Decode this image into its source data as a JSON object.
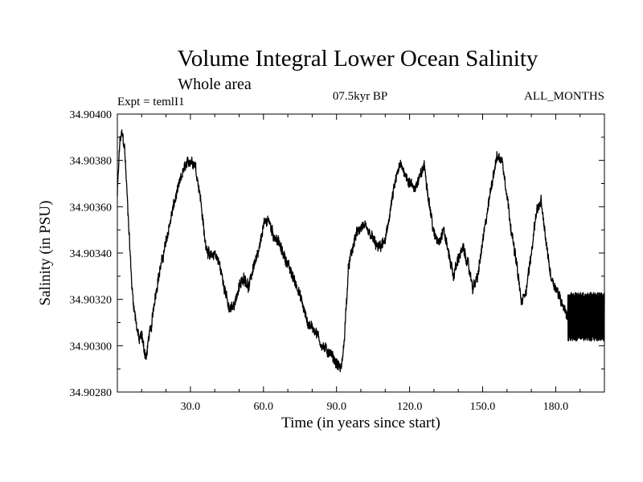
{
  "chart_data": {
    "type": "line",
    "title": "Volume Integral Lower Ocean Salinity",
    "subtitle": "Whole area",
    "header_left": "Expt = temlI1",
    "header_center": "07.5kyr BP",
    "header_right": "ALL_MONTHS",
    "xlabel": "Time (in years since start)",
    "ylabel": "Salinity (in PSU)",
    "xlim": [
      0,
      200
    ],
    "ylim": [
      34.9028,
      34.904
    ],
    "xticks": [
      30,
      60,
      90,
      120,
      150,
      180
    ],
    "xtick_labels": [
      "30.0",
      "60.0",
      "90.0",
      "120.0",
      "150.0",
      "180.0"
    ],
    "yticks": [
      34.9028,
      34.903,
      34.9032,
      34.9034,
      34.9036,
      34.9038,
      34.904
    ],
    "ytick_labels": [
      "34.90280",
      "34.90300",
      "34.90320",
      "34.90340",
      "34.90360",
      "34.90380",
      "34.90400"
    ],
    "grid": false,
    "series": [
      {
        "name": "Lower Ocean Salinity",
        "color": "#000000",
        "note": "monthly noisy trace; mean curve shown with typical noise amplitude ~0.00004 PSU (years 185-200 oscillate ~34.90303-34.90322)",
        "x": [
          0,
          1,
          2,
          3,
          4,
          5,
          6,
          7,
          8,
          9,
          10,
          11,
          12,
          13,
          14,
          15,
          17,
          20,
          23,
          26,
          28,
          30,
          32,
          34,
          36,
          38,
          40,
          42,
          44,
          46,
          48,
          50,
          52,
          54,
          56,
          58,
          60,
          62,
          64,
          66,
          68,
          70,
          72,
          74,
          76,
          78,
          80,
          82,
          84,
          86,
          88,
          90,
          92,
          93,
          95,
          98,
          101,
          104,
          107,
          110,
          112,
          114,
          116,
          118,
          120,
          122,
          124,
          126,
          128,
          130,
          132,
          134,
          136,
          138,
          140,
          142,
          144,
          146,
          148,
          150,
          152,
          154,
          156,
          158,
          160,
          162,
          164,
          166,
          168,
          170,
          172,
          174,
          176,
          178,
          180,
          182,
          184,
          185,
          188,
          192,
          196,
          200
        ],
        "values": [
          34.90365,
          34.90388,
          34.90392,
          34.90385,
          34.90365,
          34.90345,
          34.90325,
          34.90315,
          34.90308,
          34.90302,
          34.90305,
          34.90298,
          34.90295,
          34.90305,
          34.90308,
          34.90318,
          34.9033,
          34.90345,
          34.9036,
          34.90372,
          34.90378,
          34.9038,
          34.90378,
          34.90365,
          34.90345,
          34.90338,
          34.9034,
          34.90335,
          34.90325,
          34.90315,
          34.90318,
          34.90325,
          34.9033,
          34.90325,
          34.90335,
          34.9034,
          34.90352,
          34.90355,
          34.90348,
          34.90345,
          34.9034,
          34.90335,
          34.9033,
          34.90325,
          34.90318,
          34.9031,
          34.90308,
          34.90305,
          34.903,
          34.90298,
          34.90296,
          34.90292,
          34.9029,
          34.903,
          34.90335,
          34.90348,
          34.90352,
          34.90348,
          34.90342,
          34.90345,
          34.90358,
          34.9037,
          34.90378,
          34.90375,
          34.9037,
          34.90368,
          34.90372,
          34.90378,
          34.90362,
          34.90348,
          34.90345,
          34.9035,
          34.9034,
          34.9033,
          34.90338,
          34.90342,
          34.90335,
          34.90325,
          34.9033,
          34.90345,
          34.90358,
          34.90372,
          34.90382,
          34.9038,
          34.90365,
          34.90348,
          34.90335,
          34.90318,
          34.90325,
          34.9034,
          34.90358,
          34.90362,
          34.90345,
          34.9033,
          34.90325,
          34.9032,
          34.90315,
          34.90312,
          34.90312,
          34.90312,
          34.90312,
          34.90312
        ]
      }
    ]
  }
}
